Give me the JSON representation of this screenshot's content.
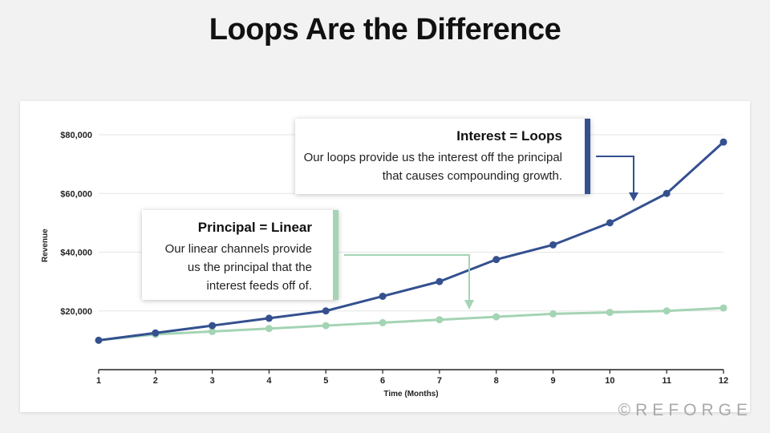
{
  "page": {
    "title": "Loops Are the Difference"
  },
  "callouts": {
    "loops": {
      "title": "Interest = Loops",
      "body": "Our loops provide us the interest off the principal that causes compounding growth.",
      "color": "#34508f"
    },
    "linear": {
      "title": "Principal = Linear",
      "body": "Our linear channels provide us the principal that the interest feeds off of.",
      "color": "#a4d4b4"
    }
  },
  "watermark": "©REFORGE",
  "chart_data": {
    "type": "line",
    "xlabel": "Time (Months)",
    "ylabel": "Revenue",
    "categories": [
      1,
      2,
      3,
      4,
      5,
      6,
      7,
      8,
      9,
      10,
      11,
      12
    ],
    "ylim": [
      0,
      90000
    ],
    "yticks": [
      20000,
      40000,
      60000,
      80000
    ],
    "ytick_labels": [
      "$20,000",
      "$40,000",
      "$60,000",
      "$80,000"
    ],
    "grid": true,
    "series": [
      {
        "key": "linear",
        "color": "#a4d4b4",
        "values": [
          10000,
          12000,
          13000,
          14000,
          15000,
          16000,
          17000,
          18000,
          19000,
          19500,
          20000,
          21000
        ]
      },
      {
        "key": "loops",
        "color": "#34508f",
        "values": [
          10000,
          12500,
          15000,
          17500,
          20000,
          25000,
          30000,
          37500,
          42500,
          50000,
          60000,
          77500
        ]
      }
    ]
  }
}
